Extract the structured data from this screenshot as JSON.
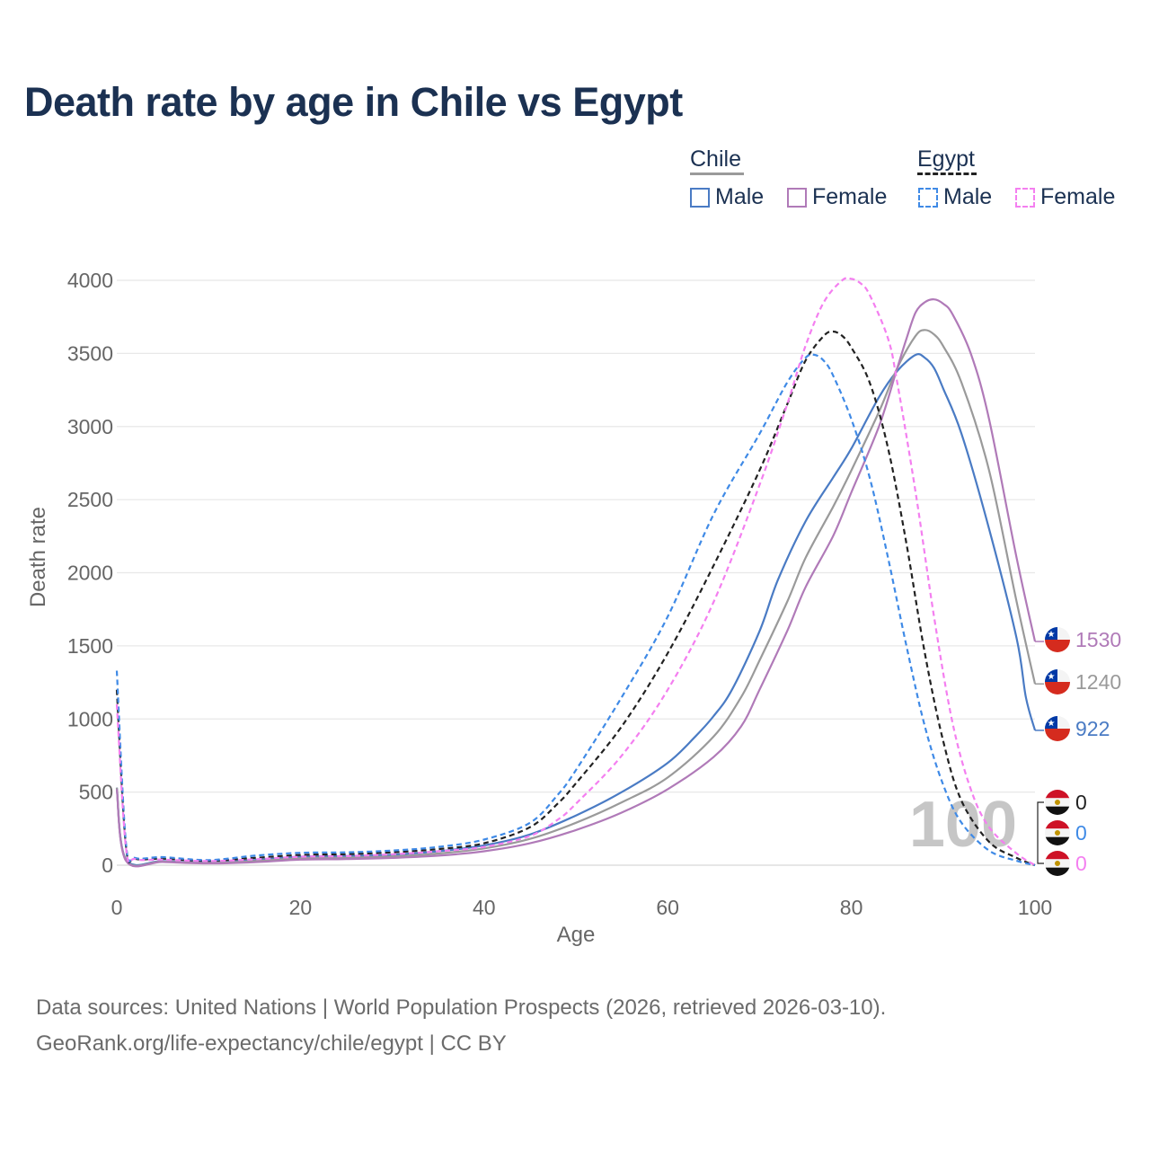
{
  "title": "Death rate by age in Chile vs Egypt",
  "legend": {
    "groups": [
      {
        "name": "Chile",
        "items": [
          {
            "label": "Male",
            "color": "#4a7bc4",
            "dash": false
          },
          {
            "label": "Female",
            "color": "#b07ab8",
            "dash": false
          }
        ]
      },
      {
        "name": "Egypt",
        "items": [
          {
            "label": "Male",
            "color": "#3f8ae6",
            "dash": true
          },
          {
            "label": "Female",
            "color": "#f47ff0",
            "dash": true
          }
        ]
      }
    ]
  },
  "year_watermark": "100",
  "footer": {
    "line1": "Data sources: United Nations | World Population Prospects (2026, retrieved 2026-03-10).",
    "line2": "GeoRank.org/life-expectancy/chile/egypt | CC BY"
  },
  "end_labels": [
    {
      "series": "Chile Female",
      "value": "1530",
      "flag": "chile-flag-icon",
      "color": "#b07ab8"
    },
    {
      "series": "Chile Total",
      "value": "1240",
      "flag": "chile-flag-icon",
      "color": "#9a9a9a"
    },
    {
      "series": "Chile Male",
      "value": "922",
      "flag": "chile-flag-icon",
      "color": "#4a7bc4"
    },
    {
      "series": "Egypt Total",
      "value": "0",
      "flag": "egypt-flag-icon",
      "color": "#222222"
    },
    {
      "series": "Egypt Male",
      "value": "0",
      "flag": "egypt-flag-icon",
      "color": "#3f8ae6"
    },
    {
      "series": "Egypt Female",
      "value": "0",
      "flag": "egypt-flag-icon",
      "color": "#f47ff0"
    }
  ],
  "chart_data": {
    "type": "line",
    "title": "Death rate by age in Chile vs Egypt",
    "xlabel": "Age",
    "ylabel": "Death rate",
    "xlim": [
      0,
      100
    ],
    "ylim": [
      0,
      4000
    ],
    "xticks": [
      0,
      20,
      40,
      60,
      80,
      100
    ],
    "yticks": [
      0,
      500,
      1000,
      1500,
      2000,
      2500,
      3000,
      3500,
      4000
    ],
    "grid": true,
    "series": [
      {
        "name": "Chile Male",
        "color": "#4a7bc4",
        "dash": false,
        "points": [
          [
            0,
            530
          ],
          [
            1,
            40
          ],
          [
            5,
            28
          ],
          [
            10,
            18
          ],
          [
            15,
            35
          ],
          [
            20,
            58
          ],
          [
            25,
            62
          ],
          [
            30,
            72
          ],
          [
            35,
            95
          ],
          [
            40,
            135
          ],
          [
            45,
            210
          ],
          [
            50,
            340
          ],
          [
            55,
            500
          ],
          [
            60,
            700
          ],
          [
            63,
            880
          ],
          [
            65,
            1020
          ],
          [
            67,
            1200
          ],
          [
            70,
            1600
          ],
          [
            72,
            1950
          ],
          [
            75,
            2350
          ],
          [
            78,
            2650
          ],
          [
            80,
            2850
          ],
          [
            83,
            3200
          ],
          [
            85,
            3380
          ],
          [
            87,
            3490
          ],
          [
            88,
            3470
          ],
          [
            89,
            3400
          ],
          [
            90,
            3260
          ],
          [
            92,
            2950
          ],
          [
            95,
            2300
          ],
          [
            98,
            1550
          ],
          [
            99,
            1150
          ],
          [
            100,
            922
          ]
        ]
      },
      {
        "name": "Chile Total",
        "color": "#9a9a9a",
        "dash": false,
        "points": [
          [
            0,
            530
          ],
          [
            1,
            35
          ],
          [
            5,
            25
          ],
          [
            10,
            15
          ],
          [
            15,
            28
          ],
          [
            20,
            48
          ],
          [
            25,
            52
          ],
          [
            30,
            60
          ],
          [
            35,
            80
          ],
          [
            40,
            115
          ],
          [
            45,
            180
          ],
          [
            50,
            290
          ],
          [
            55,
            430
          ],
          [
            60,
            600
          ],
          [
            65,
            880
          ],
          [
            68,
            1150
          ],
          [
            70,
            1400
          ],
          [
            73,
            1800
          ],
          [
            75,
            2100
          ],
          [
            78,
            2450
          ],
          [
            80,
            2700
          ],
          [
            83,
            3100
          ],
          [
            85,
            3400
          ],
          [
            87,
            3620
          ],
          [
            88,
            3660
          ],
          [
            89,
            3630
          ],
          [
            90,
            3550
          ],
          [
            92,
            3300
          ],
          [
            95,
            2700
          ],
          [
            98,
            1800
          ],
          [
            100,
            1240
          ]
        ]
      },
      {
        "name": "Chile Female",
        "color": "#b07ab8",
        "dash": false,
        "points": [
          [
            0,
            520
          ],
          [
            1,
            30
          ],
          [
            5,
            22
          ],
          [
            10,
            12
          ],
          [
            15,
            20
          ],
          [
            20,
            38
          ],
          [
            25,
            42
          ],
          [
            30,
            50
          ],
          [
            35,
            65
          ],
          [
            40,
            95
          ],
          [
            45,
            150
          ],
          [
            50,
            240
          ],
          [
            55,
            360
          ],
          [
            60,
            520
          ],
          [
            65,
            740
          ],
          [
            68,
            950
          ],
          [
            70,
            1200
          ],
          [
            73,
            1600
          ],
          [
            75,
            1900
          ],
          [
            78,
            2250
          ],
          [
            80,
            2550
          ],
          [
            83,
            3000
          ],
          [
            85,
            3400
          ],
          [
            86,
            3600
          ],
          [
            87,
            3780
          ],
          [
            88,
            3850
          ],
          [
            89,
            3870
          ],
          [
            90,
            3840
          ],
          [
            91,
            3770
          ],
          [
            93,
            3500
          ],
          [
            95,
            3050
          ],
          [
            98,
            2100
          ],
          [
            100,
            1530
          ]
        ]
      },
      {
        "name": "Egypt Total",
        "color": "#222222",
        "dash": true,
        "points": [
          [
            0,
            1200
          ],
          [
            1,
            130
          ],
          [
            2,
            45
          ],
          [
            5,
            45
          ],
          [
            10,
            30
          ],
          [
            15,
            50
          ],
          [
            20,
            70
          ],
          [
            25,
            75
          ],
          [
            30,
            88
          ],
          [
            35,
            110
          ],
          [
            40,
            150
          ],
          [
            45,
            260
          ],
          [
            48,
            420
          ],
          [
            50,
            560
          ],
          [
            55,
            950
          ],
          [
            60,
            1450
          ],
          [
            65,
            2050
          ],
          [
            70,
            2700
          ],
          [
            73,
            3150
          ],
          [
            75,
            3450
          ],
          [
            77,
            3620
          ],
          [
            78,
            3650
          ],
          [
            79,
            3620
          ],
          [
            80,
            3540
          ],
          [
            82,
            3300
          ],
          [
            84,
            2850
          ],
          [
            86,
            2200
          ],
          [
            88,
            1450
          ],
          [
            90,
            850
          ],
          [
            92,
            440
          ],
          [
            95,
            160
          ],
          [
            98,
            50
          ],
          [
            100,
            0
          ]
        ]
      },
      {
        "name": "Egypt Male",
        "color": "#3f8ae6",
        "dash": true,
        "points": [
          [
            0,
            1330
          ],
          [
            1,
            150
          ],
          [
            2,
            50
          ],
          [
            5,
            55
          ],
          [
            10,
            35
          ],
          [
            15,
            65
          ],
          [
            20,
            85
          ],
          [
            25,
            88
          ],
          [
            30,
            100
          ],
          [
            35,
            125
          ],
          [
            40,
            175
          ],
          [
            45,
            290
          ],
          [
            48,
            480
          ],
          [
            50,
            650
          ],
          [
            55,
            1150
          ],
          [
            60,
            1700
          ],
          [
            65,
            2400
          ],
          [
            70,
            2950
          ],
          [
            73,
            3300
          ],
          [
            75,
            3470
          ],
          [
            76,
            3490
          ],
          [
            77,
            3450
          ],
          [
            78,
            3350
          ],
          [
            80,
            3050
          ],
          [
            82,
            2650
          ],
          [
            84,
            2100
          ],
          [
            86,
            1500
          ],
          [
            88,
            950
          ],
          [
            90,
            550
          ],
          [
            92,
            290
          ],
          [
            95,
            100
          ],
          [
            98,
            30
          ],
          [
            100,
            0
          ]
        ]
      },
      {
        "name": "Egypt Female",
        "color": "#f47ff0",
        "dash": true,
        "points": [
          [
            0,
            1100
          ],
          [
            1,
            120
          ],
          [
            2,
            42
          ],
          [
            5,
            38
          ],
          [
            10,
            28
          ],
          [
            15,
            40
          ],
          [
            20,
            58
          ],
          [
            25,
            62
          ],
          [
            30,
            75
          ],
          [
            35,
            95
          ],
          [
            40,
            125
          ],
          [
            45,
            200
          ],
          [
            48,
            310
          ],
          [
            50,
            420
          ],
          [
            55,
            750
          ],
          [
            60,
            1200
          ],
          [
            65,
            1800
          ],
          [
            70,
            2600
          ],
          [
            73,
            3150
          ],
          [
            75,
            3550
          ],
          [
            77,
            3850
          ],
          [
            79,
            4000
          ],
          [
            80,
            4010
          ],
          [
            81,
            3980
          ],
          [
            82,
            3900
          ],
          [
            84,
            3600
          ],
          [
            85,
            3300
          ],
          [
            87,
            2550
          ],
          [
            89,
            1700
          ],
          [
            91,
            980
          ],
          [
            93,
            520
          ],
          [
            95,
            260
          ],
          [
            98,
            80
          ],
          [
            100,
            0
          ]
        ]
      }
    ]
  }
}
